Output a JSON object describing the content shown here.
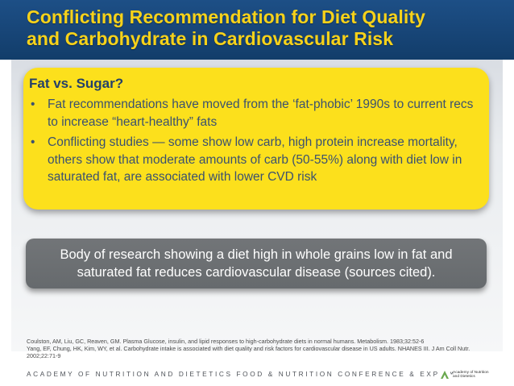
{
  "slide": {
    "title_line1": "Conflicting Recommendation for Diet Quality",
    "title_line2": "and Carbohydrate in Cardiovascular Risk",
    "yellow_box": {
      "heading": "Fat vs. Sugar?",
      "bullets": [
        "Fat recommendations have moved from the ‘fat-phobic’ 1990s to current recs to increase “heart-healthy” fats",
        "Conflicting studies — some show low carb, high protein increase mortality, others show that moderate amounts of carb (50-55%) along with diet low in saturated fat, are associated with lower CVD risk"
      ],
      "bullet_symbol": "•"
    },
    "callout": "Body of research showing a diet high in whole grains low in fat and saturated fat reduces cardiovascular disease (sources cited).",
    "references": [
      "Coulston, AM, Liu, GC, Reaven, GM. Plasma Glucose, insulin, and lipid responses to high-carbohydrate diets in normal humans. Metabolism. 1983;32:52-6",
      "Yang, EF, Chung, HK, Kim, WY, et al. Carbohydrate intake is associated with diet quality and risk factors for cardiovascular disease in US adults. NHANES III. J Am Coll Nutr. 2002;22:71-9"
    ]
  },
  "footer": {
    "conference": "ACADEMY OF NUTRITION AND DIETETICS FOOD & NUTRITION CONFERENCE & EXPO™",
    "logo_line1": "Academy of Nutrition",
    "logo_line2": "and Dietetics",
    "logo_icon": "academy-logo-icon"
  },
  "colors": {
    "header_blue": "#174577",
    "title_yellow": "#f7d21a",
    "box_yellow": "#fce01c",
    "heading_navy": "#24406a",
    "callout_gray": "#6c6f72",
    "logo_green": "#6aa84f"
  }
}
